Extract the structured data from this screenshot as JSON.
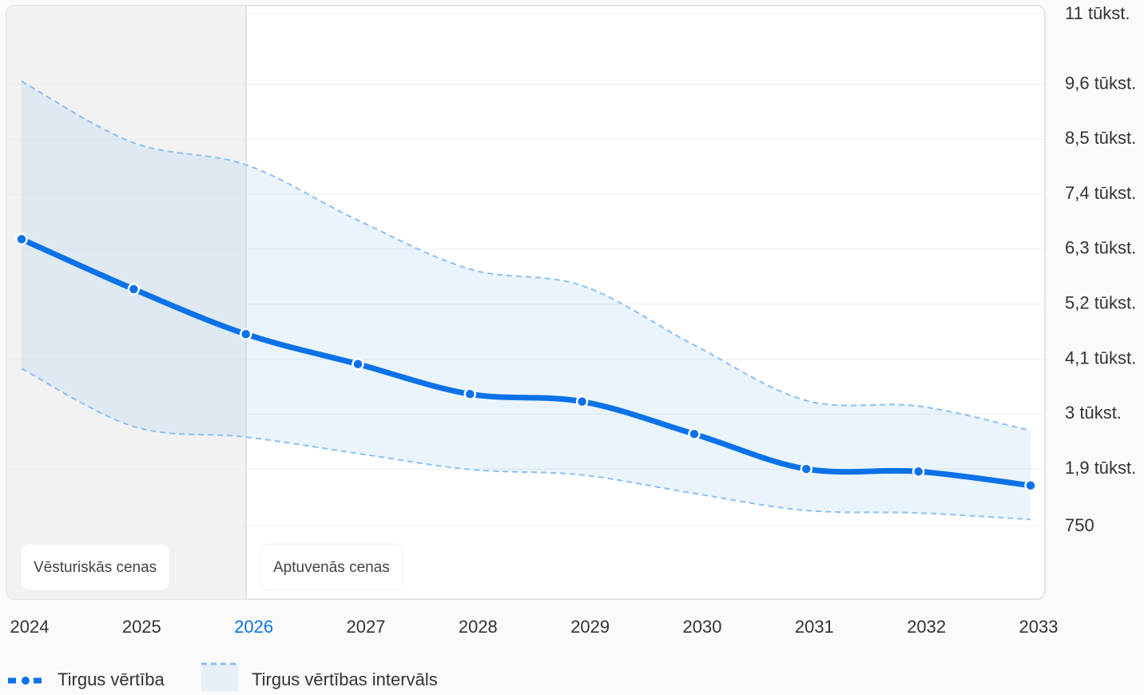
{
  "chart_data": {
    "type": "line",
    "categories": [
      "2024",
      "2025",
      "2026",
      "2027",
      "2028",
      "2029",
      "2030",
      "2031",
      "2032",
      "2033"
    ],
    "current_index": 2,
    "series": [
      {
        "name": "Tirgus vērtība",
        "color": "#0a72e8",
        "values": [
          6500,
          5500,
          4600,
          4000,
          3400,
          3250,
          2600,
          1900,
          1850,
          1570
        ]
      }
    ],
    "interval": {
      "name": "Tirgus vērtības intervāls",
      "color": "#8cc0f5",
      "upper": [
        9660,
        8430,
        7990,
        6880,
        5900,
        5570,
        4380,
        3270,
        3160,
        2670
      ],
      "lower": [
        3910,
        2750,
        2540,
        2210,
        1890,
        1780,
        1410,
        1070,
        1020,
        890
      ]
    },
    "annotations": [
      "Vēsturiskās cenas",
      "Aptuvenās cenas"
    ],
    "ylim": [
      750,
      11000
    ],
    "yticks": [
      {
        "value": 11000,
        "label": "11 tūkst."
      },
      {
        "value": 9600,
        "label": "9,6 tūkst."
      },
      {
        "value": 8500,
        "label": "8,5 tūkst."
      },
      {
        "value": 7400,
        "label": "7,4 tūkst."
      },
      {
        "value": 6300,
        "label": "6,3 tūkst."
      },
      {
        "value": 5200,
        "label": "5,2 tūkst."
      },
      {
        "value": 4100,
        "label": "4,1 tūkst."
      },
      {
        "value": 3000,
        "label": "3 tūkst."
      },
      {
        "value": 1900,
        "label": "1,9 tūkst."
      },
      750
    ],
    "grid": true
  }
}
